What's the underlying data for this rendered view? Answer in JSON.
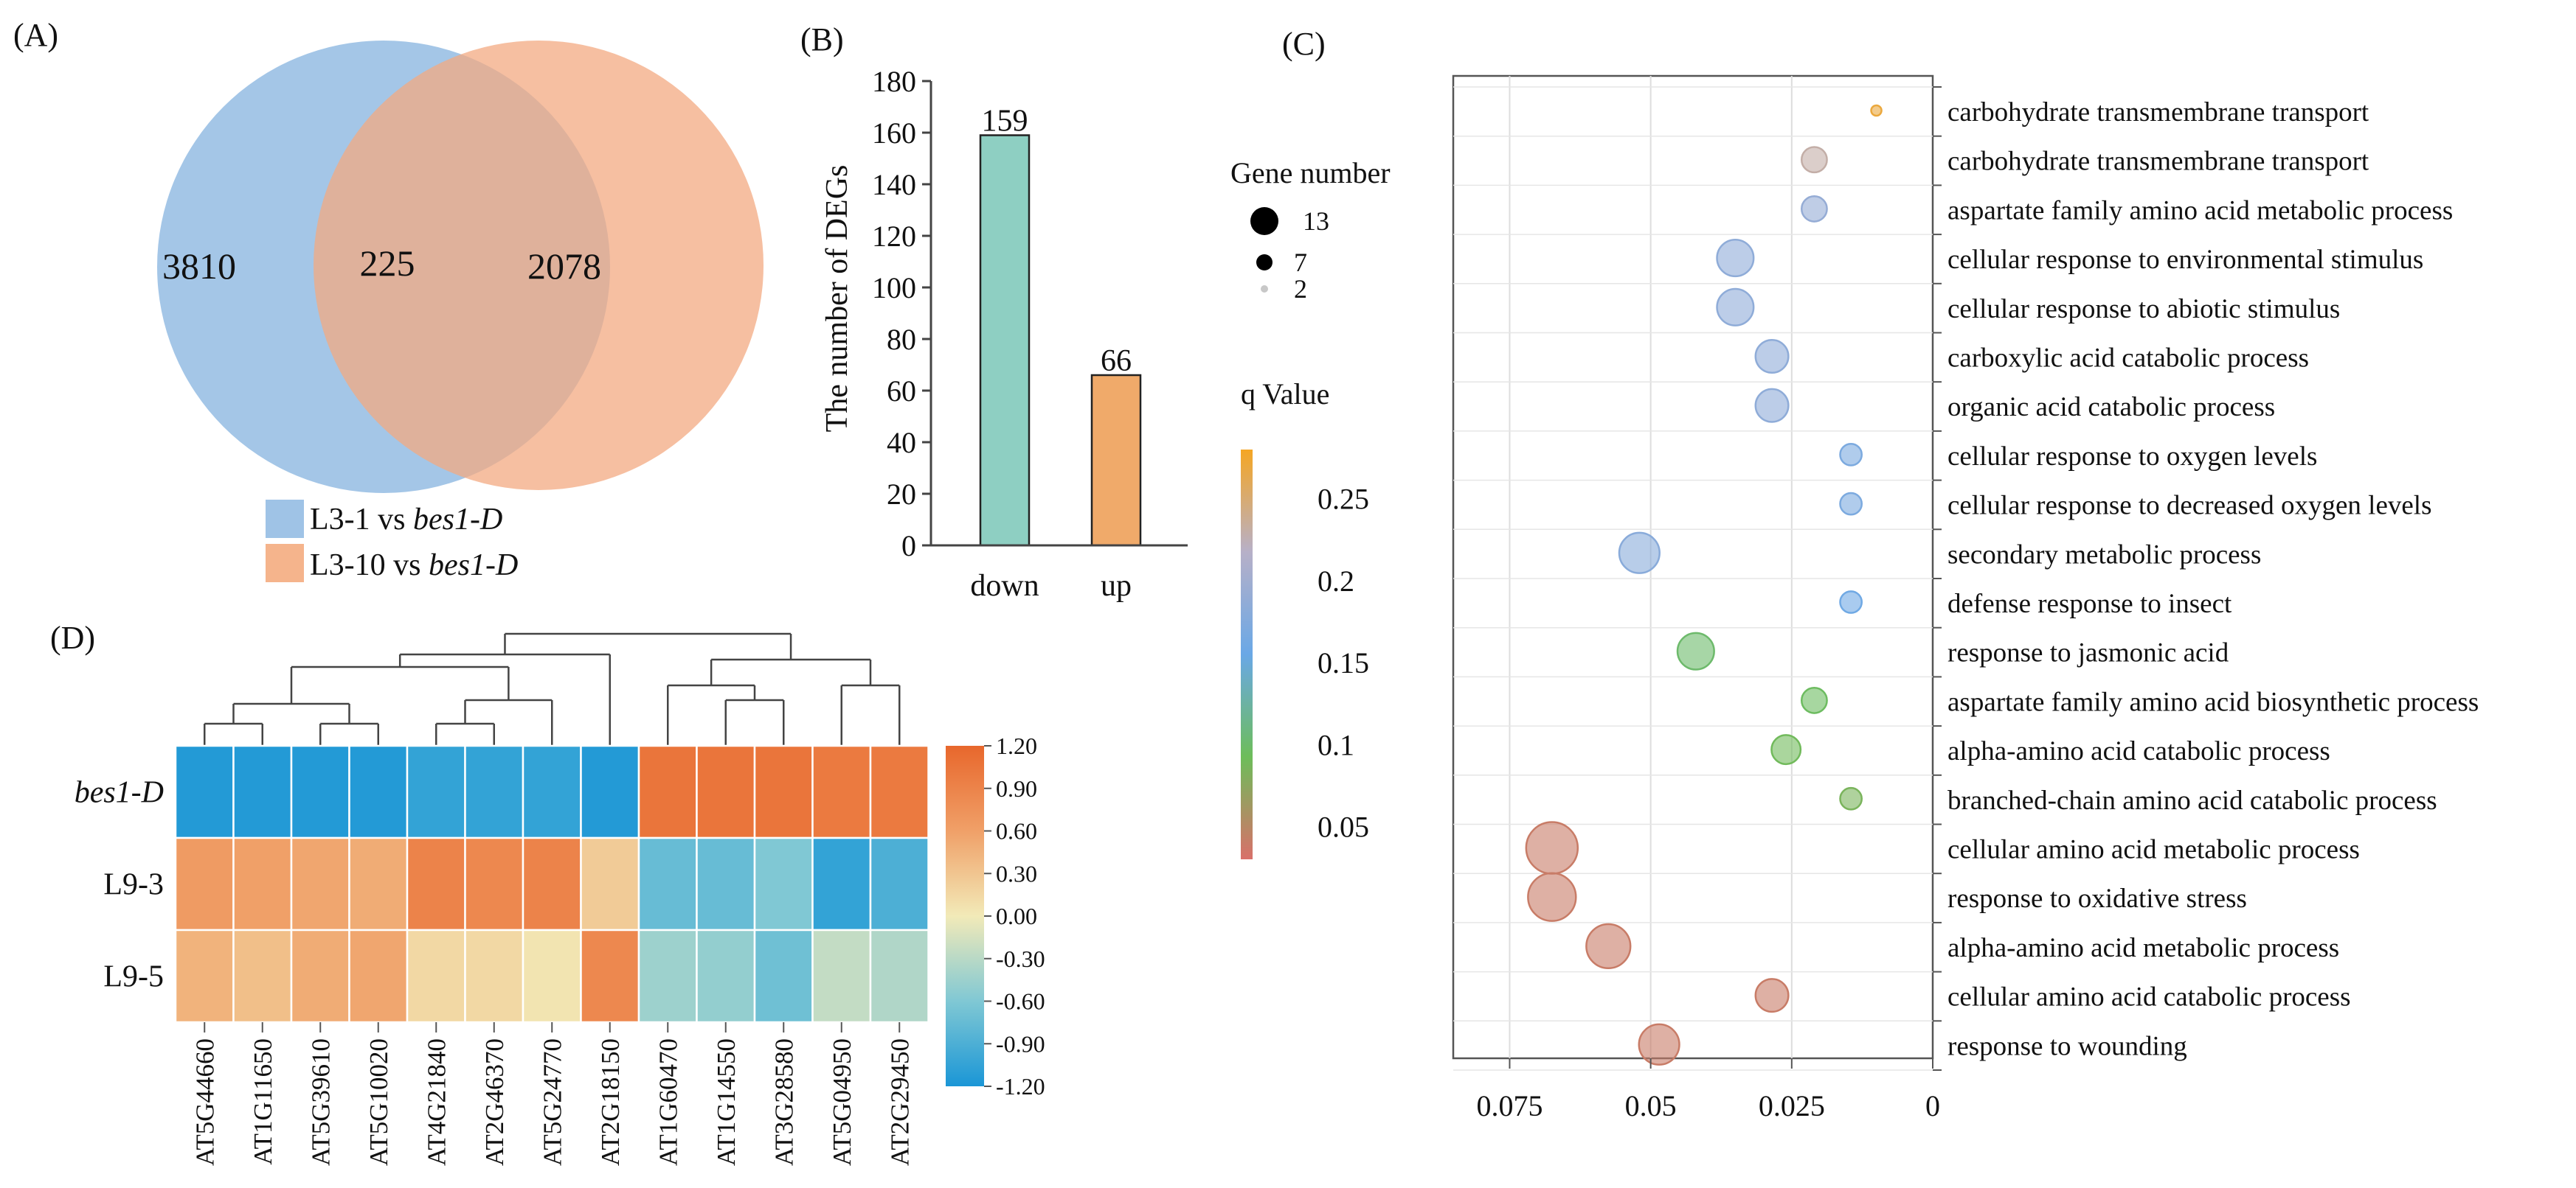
{
  "panels": {
    "A": "(A)",
    "B": "(B)",
    "C": "(C)",
    "D": "(D)"
  },
  "chart_data": [
    {
      "id": "A",
      "type": "venn",
      "sets": [
        {
          "name_prefix": "L3-1 vs ",
          "name_italic": "bes1-D",
          "color": "#9fc3e6",
          "only": 3810
        },
        {
          "name_prefix": "L3-10 vs ",
          "name_italic": "bes1-D",
          "color": "#f5b48c",
          "only": 2078
        }
      ],
      "overlap": 225
    },
    {
      "id": "B",
      "type": "bar",
      "categories": [
        "down",
        "up"
      ],
      "values": [
        159,
        66
      ],
      "colors": [
        "#8ecfc2",
        "#f0aa6a"
      ],
      "ylabel": "The number of DEGs",
      "ylim": [
        0,
        180
      ],
      "yticks": [
        0,
        20,
        40,
        60,
        80,
        100,
        120,
        140,
        160,
        180
      ]
    },
    {
      "id": "C",
      "type": "scatter",
      "xlabel": "",
      "xlim": [
        0.085,
        0
      ],
      "xticks": [
        {
          "v": 0.075,
          "label": "0.075"
        },
        {
          "v": 0.05,
          "label": "0.05"
        },
        {
          "v": 0.025,
          "label": "0.025"
        },
        {
          "v": 0,
          "label": "0"
        }
      ],
      "size_legend_title": "Gene number",
      "size_legend": [
        {
          "label": "13",
          "size": 13
        },
        {
          "label": "7",
          "size": 7
        },
        {
          "label": "2",
          "size": 2
        }
      ],
      "color_legend_title": "q Value",
      "color_legend_ticks": [
        {
          "v": 0.25,
          "label": "0.25"
        },
        {
          "v": 0.2,
          "label": "0.2"
        },
        {
          "v": 0.15,
          "label": "0.15"
        },
        {
          "v": 0.1,
          "label": "0.1"
        },
        {
          "v": 0.05,
          "label": "0.05"
        }
      ],
      "color_range": [
        0.03,
        0.28
      ],
      "terms": [
        {
          "label": "carbohydrate transmembrane transport",
          "x": 0.01,
          "size": 2,
          "q": 0.27
        },
        {
          "label": "carbohydrate transmembrane transport",
          "x": 0.021,
          "size": 6,
          "q": 0.23
        },
        {
          "label": "aspartate family amino acid metabolic process",
          "x": 0.021,
          "size": 6,
          "q": 0.19
        },
        {
          "label": "cellular response to environmental stimulus",
          "x": 0.035,
          "size": 9,
          "q": 0.185
        },
        {
          "label": "cellular response to abiotic stimulus",
          "x": 0.035,
          "size": 9,
          "q": 0.185
        },
        {
          "label": "carboxylic acid catabolic process",
          "x": 0.0285,
          "size": 8,
          "q": 0.185
        },
        {
          "label": "organic acid catabolic process",
          "x": 0.0285,
          "size": 8,
          "q": 0.185
        },
        {
          "label": "cellular response to oxygen levels",
          "x": 0.0145,
          "size": 5,
          "q": 0.17
        },
        {
          "label": "cellular response to decreased oxygen levels",
          "x": 0.0145,
          "size": 5,
          "q": 0.17
        },
        {
          "label": "secondary metabolic process",
          "x": 0.052,
          "size": 10,
          "q": 0.18
        },
        {
          "label": "defense response to insect",
          "x": 0.0145,
          "size": 5,
          "q": 0.16
        },
        {
          "label": "response to jasmonic acid",
          "x": 0.042,
          "size": 9,
          "q": 0.1
        },
        {
          "label": "aspartate family amino acid biosynthetic process",
          "x": 0.021,
          "size": 6,
          "q": 0.095
        },
        {
          "label": "alpha-amino acid catabolic process",
          "x": 0.026,
          "size": 7,
          "q": 0.09
        },
        {
          "label": "branched-chain amino acid catabolic process",
          "x": 0.0145,
          "size": 5,
          "q": 0.085
        },
        {
          "label": "cellular amino acid metabolic process",
          "x": 0.0675,
          "size": 13,
          "q": 0.04
        },
        {
          "label": "response to oxidative stress",
          "x": 0.0675,
          "size": 12,
          "q": 0.04
        },
        {
          "label": "alpha-amino acid metabolic process",
          "x": 0.0575,
          "size": 11,
          "q": 0.04
        },
        {
          "label": "cellular amino acid catabolic process",
          "x": 0.0285,
          "size": 8,
          "q": 0.04
        },
        {
          "label": "response to wounding",
          "x": 0.0485,
          "size": 10,
          "q": 0.04
        }
      ]
    },
    {
      "id": "D",
      "type": "heatmap",
      "rows": [
        {
          "label": "bes1-D",
          "italic": true
        },
        {
          "label": "L9-3",
          "italic": false
        },
        {
          "label": "L9-5",
          "italic": false
        }
      ],
      "columns": [
        "AT5G44660",
        "AT1G11650",
        "AT5G39610",
        "AT5G10020",
        "AT4G21840",
        "AT2G46370",
        "AT5G24770",
        "AT2G18150",
        "AT1G60470",
        "AT1G14550",
        "AT3G28580",
        "AT5G04950",
        "AT2G29450"
      ],
      "values": [
        [
          -1.15,
          -1.15,
          -1.15,
          -1.15,
          -1.05,
          -1.05,
          -1.05,
          -1.15,
          1.05,
          1.05,
          1.05,
          1.0,
          1.0
        ],
        [
          0.65,
          0.6,
          0.55,
          0.5,
          0.9,
          0.85,
          0.9,
          0.25,
          -0.75,
          -0.75,
          -0.6,
          -1.05,
          -0.9
        ],
        [
          0.45,
          0.35,
          0.5,
          0.55,
          0.15,
          0.15,
          0.05,
          0.85,
          -0.45,
          -0.5,
          -0.7,
          -0.25,
          -0.35
        ]
      ],
      "scale_min": -1.2,
      "scale_max": 1.2,
      "scale_ticks": [
        "1.20",
        "0.90",
        "0.60",
        "0.30",
        "0.00",
        "-0.30",
        "-0.60",
        "-0.90",
        "-1.20"
      ]
    }
  ]
}
